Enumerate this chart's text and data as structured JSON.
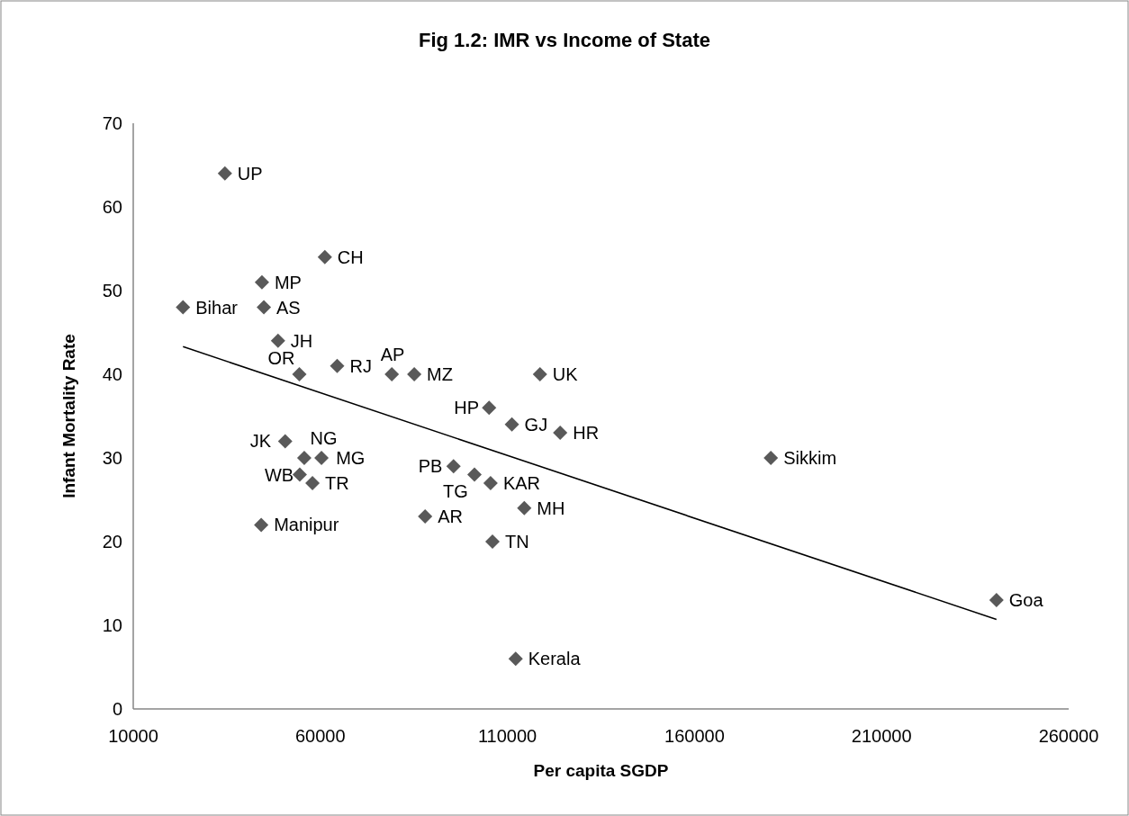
{
  "chart_data": {
    "type": "scatter",
    "title": "Fig 1.2: IMR vs Income of State",
    "xlabel": "Per capita SGDP",
    "ylabel": "Infant Mortality Rate",
    "xlim": [
      10000,
      260000
    ],
    "xticks": [
      10000,
      60000,
      110000,
      160000,
      210000,
      260000
    ],
    "ylim": [
      0,
      70
    ],
    "yticks": [
      0,
      10,
      20,
      30,
      40,
      50,
      60,
      70
    ],
    "grid": false,
    "marker": "diamond",
    "series": [
      {
        "color": "#595959",
        "x": [
          34500,
          44400,
          61200,
          23300,
          44900,
          48700,
          64500,
          54400,
          79100,
          85100,
          118700,
          105100,
          111200,
          124100,
          50600,
          55700,
          60300,
          54500,
          57900,
          44200,
          95600,
          101200,
          105500,
          114500,
          88000,
          106000,
          112200,
          180400,
          240700
        ],
        "values": [
          64,
          51,
          54,
          48,
          48,
          44,
          41,
          40,
          40,
          40,
          40,
          36,
          34,
          33,
          32,
          30,
          30,
          28,
          27,
          22,
          29,
          28,
          27,
          24,
          23,
          20,
          6,
          30,
          13
        ]
      },
      {
        "type": "line",
        "color": "#000000",
        "marker": "none",
        "x": [
          23300,
          240700
        ],
        "values": [
          43.3,
          10.7
        ]
      }
    ],
    "annotations": [
      {
        "text": "UP",
        "x": 34500,
        "y": 64
      },
      {
        "text": "MP",
        "x": 44400,
        "y": 51
      },
      {
        "text": "CH",
        "x": 61200,
        "y": 54
      },
      {
        "text": "Bihar",
        "x": 23300,
        "y": 48
      },
      {
        "text": "AS",
        "x": 44900,
        "y": 48
      },
      {
        "text": "JH",
        "x": 48700,
        "y": 44
      },
      {
        "text": "RJ",
        "x": 64500,
        "y": 41
      },
      {
        "text": "OR",
        "x": 54400,
        "y": 40
      },
      {
        "text": "AP",
        "x": 79100,
        "y": 40
      },
      {
        "text": "MZ",
        "x": 85100,
        "y": 40
      },
      {
        "text": "UK",
        "x": 118700,
        "y": 40
      },
      {
        "text": "HP",
        "x": 105100,
        "y": 36
      },
      {
        "text": "GJ",
        "x": 111200,
        "y": 34
      },
      {
        "text": "HR",
        "x": 124100,
        "y": 33
      },
      {
        "text": "JK",
        "x": 50600,
        "y": 32
      },
      {
        "text": "MG",
        "x": 55700,
        "y": 30
      },
      {
        "text": "NG",
        "x": 60300,
        "y": 30
      },
      {
        "text": "WB",
        "x": 54500,
        "y": 28
      },
      {
        "text": "TR",
        "x": 57900,
        "y": 27
      },
      {
        "text": "Manipur",
        "x": 44200,
        "y": 22
      },
      {
        "text": "PB",
        "x": 95600,
        "y": 29
      },
      {
        "text": "TG",
        "x": 101200,
        "y": 28
      },
      {
        "text": "KAR",
        "x": 105500,
        "y": 27
      },
      {
        "text": "MH",
        "x": 114500,
        "y": 24
      },
      {
        "text": "AR",
        "x": 88000,
        "y": 23
      },
      {
        "text": "TN",
        "x": 106000,
        "y": 20
      },
      {
        "text": "Kerala",
        "x": 112200,
        "y": 6
      },
      {
        "text": "Sikkim",
        "x": 180400,
        "y": 30
      },
      {
        "text": "Goa",
        "x": 240700,
        "y": 13
      }
    ]
  }
}
